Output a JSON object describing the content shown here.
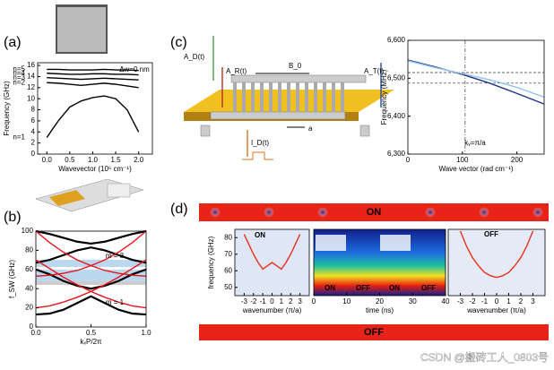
{
  "panel_labels": [
    "(a)",
    "(b)",
    "(c)",
    "(d)"
  ],
  "diagram": {
    "labels": [
      "A_D(t)",
      "A_R(t)",
      "B_0",
      "A_T(t)",
      "I_D(t)",
      "a"
    ]
  },
  "banners": [
    "ON",
    "OFF"
  ],
  "watermark": "CSDN @搬砖工人_0803号",
  "chart_data": [
    {
      "type": "line",
      "xlabel": "Wavevector (10⁵ cm⁻¹)",
      "ylabel": "Frequency (GHz)",
      "annotations": [
        "Δw=0 nm"
      ],
      "legend": "left",
      "xlim": [
        -0.2,
        2.3
      ],
      "xticks": [
        {
          "value": 0,
          "label": "0.0"
        },
        {
          "value": 0.5,
          "label": "0.5"
        },
        {
          "value": 1,
          "label": "1.0"
        },
        {
          "value": 1.5,
          "label": "1.5"
        },
        {
          "value": 2,
          "label": "2.0"
        }
      ],
      "ylim": [
        0,
        16.5
      ],
      "yticks": [
        0,
        2,
        4,
        6,
        8,
        10,
        12,
        14,
        16
      ],
      "x": [
        0,
        0.25,
        0.5,
        0.75,
        1,
        1.25,
        1.5,
        1.75,
        2
      ],
      "series": [
        {
          "name": "n=1",
          "color": "#000000",
          "values": [
            3,
            6,
            8.5,
            9.6,
            10.2,
            10.5,
            10,
            8,
            4
          ]
        },
        {
          "name": "n=2",
          "color": "#000000",
          "values": [
            12.9,
            12.8,
            12.6,
            12.4,
            12.6,
            12.8,
            12.6,
            12.3,
            12
          ]
        },
        {
          "name": "n=3",
          "color": "#000000",
          "values": [
            13.8,
            13.7,
            13.6,
            13.5,
            13.6,
            13.7,
            13.6,
            13.5,
            13.4
          ]
        },
        {
          "name": "n=4",
          "color": "#000000",
          "values": [
            14.6,
            14.5,
            14.4,
            14.4,
            14.5,
            14.5,
            14.4,
            14.4,
            14.3
          ]
        },
        {
          "name": "n=5",
          "color": "#000000",
          "values": [
            15.3,
            15.3,
            15.2,
            15.2,
            15.2,
            15.3,
            15.2,
            15.2,
            15.1
          ]
        }
      ]
    },
    {
      "type": "line",
      "xlabel": "kₓP/2π",
      "ylabel": "f_SW (GHz)",
      "annotations": [
        "m = 3",
        "m = 1"
      ],
      "xlim": [
        0,
        1
      ],
      "xticks": [
        {
          "value": 0,
          "label": "0.0"
        },
        0.5,
        {
          "value": 1,
          "label": "1.0"
        }
      ],
      "ylim": [
        0,
        100
      ],
      "yticks": [
        0,
        20,
        40,
        60,
        80,
        100
      ],
      "x": [
        0,
        0.125,
        0.25,
        0.375,
        0.5,
        0.625,
        0.75,
        0.875,
        1
      ],
      "series": [
        {
          "color": "#000000",
          "values": [
            13,
            14,
            18,
            25,
            32,
            25,
            18,
            14,
            13
          ]
        },
        {
          "color": "#000000",
          "values": [
            60,
            55,
            48,
            43,
            40,
            43,
            48,
            55,
            60
          ]
        },
        {
          "color": "#000000",
          "values": [
            67,
            70,
            75,
            80,
            83,
            80,
            75,
            70,
            67
          ]
        },
        {
          "color": "#000000",
          "values": [
            100,
            97,
            93,
            89,
            87,
            89,
            93,
            97,
            100
          ]
        },
        {
          "color": "#e8141b",
          "values": [
            20,
            22,
            26,
            31,
            37,
            44,
            52,
            61,
            70
          ]
        },
        {
          "color": "#e8141b",
          "values": [
            70,
            61,
            52,
            44,
            37,
            31,
            26,
            22,
            20
          ]
        },
        {
          "color": "#e8141b",
          "values": [
            100,
            88,
            78,
            70,
            64,
            59,
            56,
            54,
            53
          ]
        },
        {
          "color": "#e8141b",
          "values": [
            53,
            54,
            56,
            59,
            64,
            70,
            78,
            88,
            100
          ]
        }
      ]
    },
    {
      "type": "line",
      "xlabel": "Wave vector (rad cm⁻¹)",
      "ylabel": "Frequency (MHz)",
      "annotations": [
        "kᵧ=π/a"
      ],
      "xlim": [
        0,
        250
      ],
      "xticks": [
        0,
        100,
        200
      ],
      "ylim": [
        6300,
        6600
      ],
      "yticks": [
        {
          "value": 6300,
          "label": "6,300"
        },
        {
          "value": 6400,
          "label": "6,400"
        },
        {
          "value": 6500,
          "label": "6,500"
        },
        {
          "value": 6600,
          "label": "6,600"
        }
      ],
      "hlines": [
        6515,
        6487
      ],
      "vline": 105,
      "x": [
        0,
        50,
        100,
        150,
        200,
        250
      ],
      "series": [
        {
          "color": "#1f2f8a",
          "values": [
            6548,
            6530,
            6510,
            6487,
            6460,
            6432
          ]
        },
        {
          "color": "#8fc3e8",
          "values": [
            6546,
            6528,
            6512,
            6496,
            6476,
            6450
          ]
        }
      ]
    },
    {
      "type": "heatmap",
      "xlabel": "wavenumber (π/a)",
      "ylabel": "frequency (GHz)",
      "annotations": [
        "ON"
      ],
      "xlim": [
        -4,
        4
      ],
      "xticks": [
        -3,
        -2,
        -1,
        0,
        1,
        2,
        3
      ],
      "ylim": [
        45,
        85
      ],
      "yticks": [
        50,
        60,
        70,
        80
      ],
      "x": [
        -3,
        -2.5,
        -2,
        -1.5,
        -1,
        -0.5,
        0,
        0.5,
        1,
        1.5,
        2,
        2.5,
        3
      ],
      "series": [
        {
          "color": "#e8301b",
          "values": [
            82,
            76,
            70,
            65,
            61,
            63,
            65,
            63,
            61,
            65,
            70,
            76,
            82
          ]
        }
      ]
    },
    {
      "type": "heatmap",
      "xlabel": "time (ns)",
      "annotations": [
        "ON",
        "OFF",
        "ON",
        "OFF"
      ],
      "xlim": [
        0,
        40
      ],
      "xticks": [
        0,
        10,
        20,
        30,
        40
      ],
      "ylim": [
        45,
        85
      ],
      "series": []
    },
    {
      "type": "heatmap",
      "xlabel": "wavenumber (π/a)",
      "annotations": [
        "OFF"
      ],
      "xlim": [
        -4,
        4
      ],
      "xticks": [
        -3,
        -2,
        -1,
        0,
        1,
        2,
        3
      ],
      "ylim": [
        45,
        85
      ],
      "x": [
        -3,
        -2.5,
        -2,
        -1.5,
        -1,
        -0.5,
        0,
        0.5,
        1,
        1.5,
        2,
        2.5,
        3
      ],
      "series": [
        {
          "color": "#e8301b",
          "values": [
            84,
            75,
            68,
            63,
            59,
            57,
            56,
            57,
            59,
            63,
            68,
            75,
            84
          ]
        }
      ]
    }
  ]
}
